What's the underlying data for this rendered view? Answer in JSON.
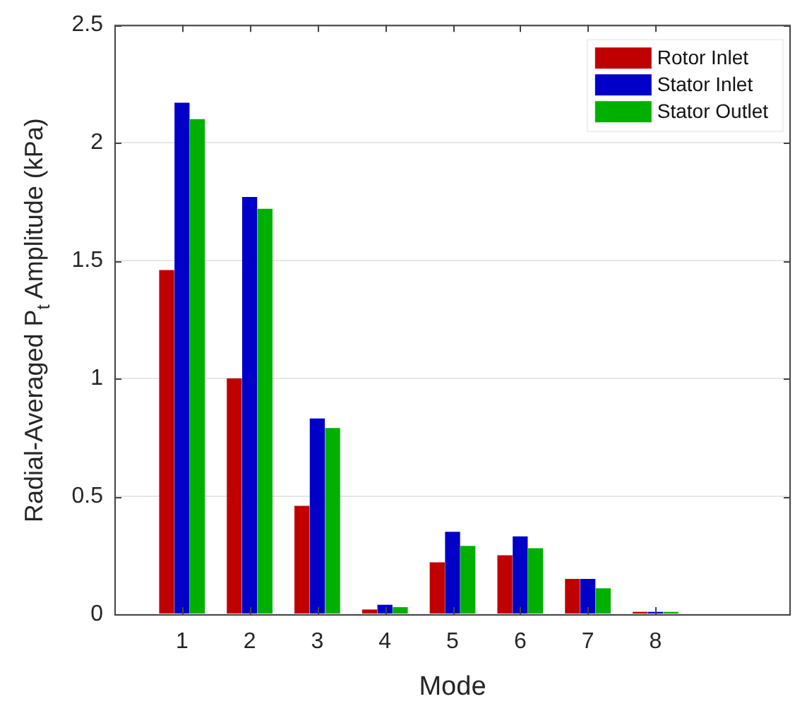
{
  "chart_data": {
    "type": "bar",
    "xlabel": "Mode",
    "ylabel": "Radial-Averaged P$_{t}$ Amplitude (kPa)",
    "x": [
      1,
      2,
      3,
      4,
      5,
      6,
      7,
      8
    ],
    "series": [
      {
        "name": "Rotor Inlet",
        "color": "#c00000",
        "values": [
          1.46,
          1.0,
          0.46,
          0.02,
          0.22,
          0.25,
          0.15,
          0.01
        ]
      },
      {
        "name": "Stator Inlet",
        "color": "#0000c8",
        "values": [
          2.17,
          1.77,
          0.83,
          0.04,
          0.35,
          0.33,
          0.15,
          0.01
        ]
      },
      {
        "name": "Stator Outlet",
        "color": "#00b000",
        "values": [
          2.1,
          1.72,
          0.79,
          0.03,
          0.29,
          0.28,
          0.11,
          0.01
        ]
      }
    ],
    "xlim": [
      0,
      10
    ],
    "xticks": [
      1,
      2,
      3,
      4,
      5,
      6,
      7,
      8
    ],
    "ylim": [
      0,
      2.5
    ],
    "yticks": [
      0,
      0.5,
      1,
      1.5,
      2,
      2.5
    ],
    "grid": "y",
    "legend": "top right"
  }
}
